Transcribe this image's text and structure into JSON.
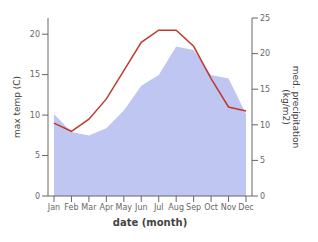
{
  "chart_data": {
    "type": "line",
    "categories": [
      "Jan",
      "Feb",
      "Mar",
      "Apr",
      "May",
      "Jun",
      "Jul",
      "Aug",
      "Sep",
      "Oct",
      "Nov",
      "Dec"
    ],
    "series": [
      {
        "type": "area",
        "axis": "y2",
        "color": "#b3bcef",
        "values": [
          11.5,
          9.0,
          8.5,
          9.5,
          12.0,
          15.5,
          17.0,
          21.0,
          20.5,
          17.0,
          16.5,
          11.5
        ]
      },
      {
        "type": "line",
        "color": "#c0392b",
        "values": [
          9.0,
          8.0,
          9.5,
          12.0,
          15.5,
          19.0,
          20.5,
          20.5,
          18.5,
          14.5,
          11.0,
          10.5
        ]
      }
    ],
    "xlabel": "date (month)",
    "ylabel": "max temp (C)",
    "y2label": "med. precipitation\n(kg/m2)",
    "ylim": [
      0,
      22
    ],
    "yticks": [
      0,
      5,
      10,
      15,
      20
    ],
    "y2lim": [
      0,
      25
    ],
    "y2ticks": [
      0,
      5,
      10,
      15,
      20,
      25
    ],
    "grid": false
  }
}
